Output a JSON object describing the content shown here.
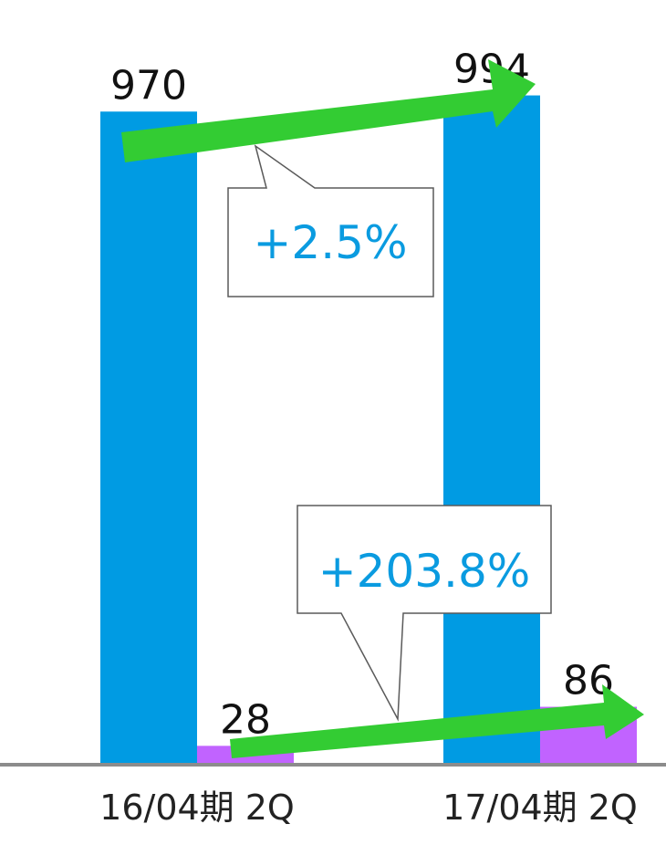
{
  "chart_data": {
    "type": "bar",
    "categories": [
      "16/04期 2Q",
      "17/04期 2Q"
    ],
    "series": [
      {
        "values": [
          970,
          994
        ],
        "color": "#009BE3"
      },
      {
        "values": [
          28,
          86
        ],
        "color": "#C163FF"
      }
    ],
    "ylim": [
      0,
      1030
    ],
    "grid": false,
    "annotations": [
      {
        "text": "+2.5%",
        "series_index": 0
      },
      {
        "text": "+203.8%",
        "series_index": 1
      }
    ],
    "arrow_color": "#33CC33",
    "callout_text_color": "#0A9BE0"
  }
}
